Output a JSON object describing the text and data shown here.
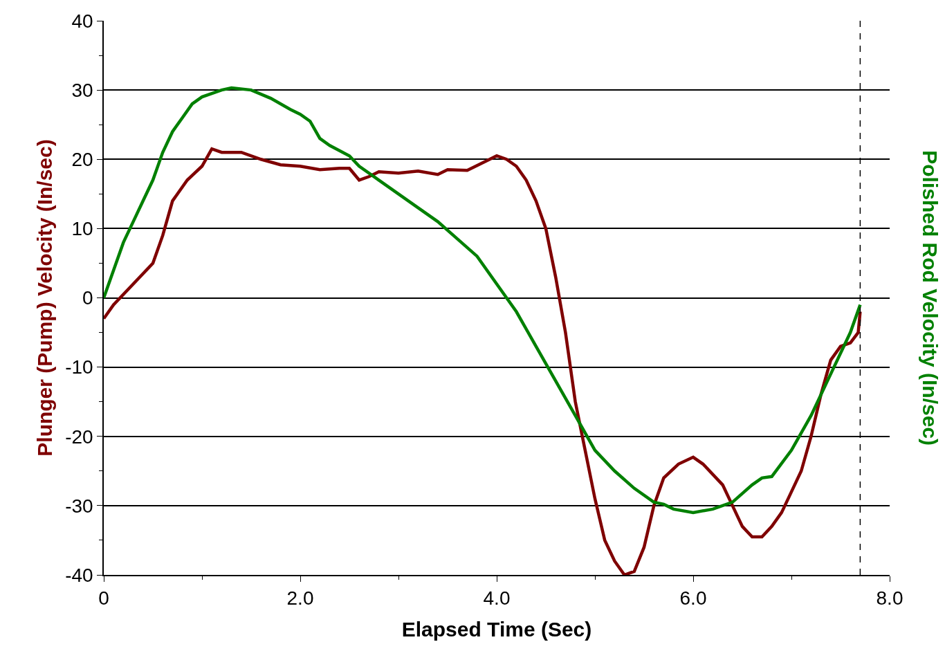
{
  "chart_data": {
    "type": "line",
    "xlabel": "Elapsed Time (Sec)",
    "ylabel": "Plunger (Pump) Velocity (In/sec)",
    "y2label": "Polished Rod Velocity (In/sec)",
    "xlim": [
      0,
      8
    ],
    "xticks": [
      0,
      {
        "value": 2,
        "label": "2.0"
      },
      {
        "value": 4,
        "label": "4.0"
      },
      {
        "value": 6,
        "label": "6.0"
      },
      {
        "value": 8,
        "label": "8.0"
      }
    ],
    "ylim": [
      -40,
      40
    ],
    "yticks": [
      -40,
      -30,
      -20,
      -10,
      0,
      10,
      20,
      30,
      40
    ],
    "grid": "y",
    "legend": false,
    "marker": "none",
    "line_style": "solid",
    "ref_lines": [
      {
        "axis": "x",
        "value": 7.7,
        "color": "#000000",
        "line_style": "dashed"
      }
    ],
    "series": [
      {
        "color": "#7f0000",
        "x": [
          0,
          0.1,
          0.3,
          0.5,
          0.6,
          0.7,
          0.85,
          1.0,
          1.1,
          1.2,
          1.4,
          1.6,
          1.8,
          2.0,
          2.2,
          2.4,
          2.5,
          2.6,
          2.7,
          2.8,
          3.0,
          3.2,
          3.4,
          3.5,
          3.7,
          3.9,
          4.0,
          4.1,
          4.2,
          4.3,
          4.4,
          4.5,
          4.6,
          4.7,
          4.8,
          4.9,
          5.0,
          5.1,
          5.2,
          5.3,
          5.4,
          5.5,
          5.6,
          5.7,
          5.85,
          6.0,
          6.1,
          6.3,
          6.4,
          6.5,
          6.6,
          6.7,
          6.8,
          6.9,
          7.0,
          7.1,
          7.2,
          7.3,
          7.4,
          7.5,
          7.6,
          7.68,
          7.7
        ],
        "values": [
          -3,
          -1,
          2,
          5,
          9,
          14,
          17,
          19,
          21.5,
          21,
          21,
          20,
          19.2,
          19,
          18.5,
          18.7,
          18.7,
          17,
          17.5,
          18.2,
          18,
          18.3,
          17.8,
          18.5,
          18.4,
          19.8,
          20.5,
          20,
          19,
          17,
          14,
          10,
          3,
          -5,
          -15,
          -22,
          -29,
          -35,
          -38,
          -40,
          -39.5,
          -36,
          -30,
          -26,
          -24,
          -23,
          -24,
          -27,
          -30,
          -33,
          -34.5,
          -34.5,
          -33,
          -31,
          -28,
          -25,
          -20,
          -14,
          -9,
          -7,
          -6.5,
          -5,
          -2
        ]
      },
      {
        "color": "#008000",
        "x": [
          0,
          0.1,
          0.2,
          0.3,
          0.4,
          0.5,
          0.6,
          0.7,
          0.8,
          0.9,
          1.0,
          1.2,
          1.3,
          1.5,
          1.7,
          1.9,
          2.0,
          2.1,
          2.2,
          2.3,
          2.5,
          2.6,
          2.8,
          3.0,
          3.2,
          3.4,
          3.6,
          3.8,
          4.0,
          4.2,
          4.4,
          4.6,
          4.8,
          5.0,
          5.2,
          5.4,
          5.6,
          5.7,
          5.8,
          6.0,
          6.2,
          6.4,
          6.6,
          6.7,
          6.8,
          7.0,
          7.2,
          7.4,
          7.6,
          7.7
        ],
        "values": [
          0,
          4,
          8,
          11,
          14,
          17,
          21,
          24,
          26,
          28,
          29,
          30,
          30.3,
          30,
          28.8,
          27.2,
          26.5,
          25.5,
          23,
          22,
          20.5,
          19,
          17,
          15,
          13,
          11,
          8.5,
          6,
          2,
          -2,
          -7,
          -12,
          -17,
          -22,
          -25,
          -27.5,
          -29.5,
          -29.8,
          -30.5,
          -31,
          -30.5,
          -29.5,
          -27,
          -26,
          -25.8,
          -22,
          -17,
          -11,
          -5,
          -1
        ]
      }
    ]
  }
}
